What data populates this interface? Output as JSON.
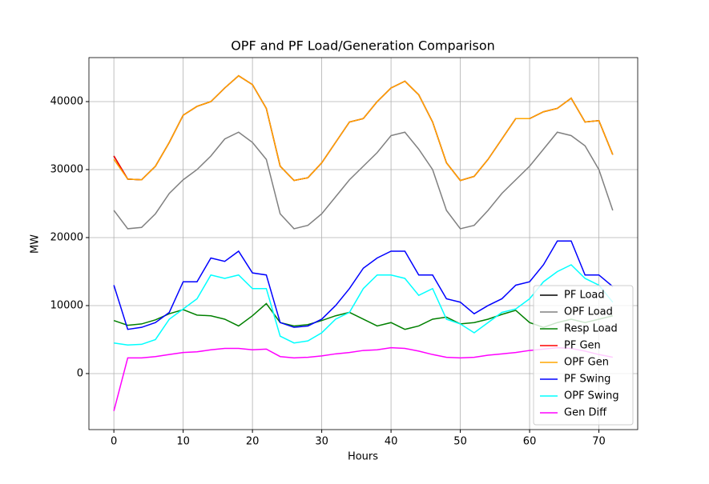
{
  "chart_data": {
    "type": "line",
    "title": "OPF and PF Load/Generation Comparison",
    "x_label": "Hours",
    "y_label": "MW",
    "x": [
      0,
      2,
      4,
      6,
      8,
      10,
      12,
      14,
      16,
      18,
      20,
      22,
      24,
      26,
      28,
      30,
      32,
      34,
      36,
      38,
      40,
      42,
      44,
      46,
      48,
      50,
      52,
      54,
      56,
      58,
      60,
      62,
      64,
      66,
      68,
      70,
      72
    ],
    "xlim": [
      -3.6,
      75.6
    ],
    "xticks": [
      0,
      10,
      20,
      30,
      40,
      50,
      60,
      70
    ],
    "ylim": [
      -8240,
      46470
    ],
    "yticks": [
      0,
      10000,
      20000,
      30000,
      40000
    ],
    "grid": true,
    "legend": "lower right",
    "series": [
      {
        "name": "PF Load",
        "color": "#000000",
        "values": [
          32000,
          28600,
          28500,
          30500,
          34000,
          38000,
          39300,
          40000,
          42000,
          43800,
          42500,
          39000,
          30500,
          28400,
          28800,
          31000,
          34000,
          37000,
          37500,
          40000,
          42000,
          43000,
          41000,
          37000,
          31000,
          28400,
          29000,
          31500,
          34500,
          37500,
          37500,
          38500,
          39000,
          40500,
          37000,
          37200,
          32200
        ]
      },
      {
        "name": "OPF Load",
        "color": "#808080",
        "values": [
          24000,
          21300,
          21500,
          23500,
          26500,
          28500,
          30000,
          32000,
          34500,
          35500,
          34000,
          31500,
          23500,
          21300,
          21800,
          23500,
          26000,
          28500,
          30500,
          32500,
          35000,
          35500,
          33000,
          30000,
          24000,
          21300,
          21800,
          24000,
          26500,
          28500,
          30500,
          33000,
          35500,
          35000,
          33500,
          30000,
          24000
        ]
      },
      {
        "name": "Resp Load",
        "color": "#008000",
        "values": [
          7800,
          7100,
          7300,
          7900,
          8800,
          9400,
          8600,
          8500,
          8000,
          7000,
          8500,
          10300,
          7500,
          7000,
          7200,
          7800,
          8500,
          9000,
          8000,
          7000,
          7500,
          6500,
          7000,
          8000,
          8300,
          7300,
          7500,
          8000,
          8700,
          9300,
          7500,
          6800,
          7500,
          8000,
          7500,
          8000,
          8500
        ]
      },
      {
        "name": "PF Gen",
        "color": "#ff0000",
        "values": [
          32000,
          28600,
          28500,
          30500,
          34000,
          38000,
          39300,
          40000,
          42000,
          43800,
          42500,
          39000,
          30500,
          28400,
          28800,
          31000,
          34000,
          37000,
          37500,
          40000,
          42000,
          43000,
          41000,
          37000,
          31000,
          28400,
          29000,
          31500,
          34500,
          37500,
          37500,
          38500,
          39000,
          40500,
          37000,
          37200,
          32200
        ]
      },
      {
        "name": "OPF Gen",
        "color": "#ffa500",
        "values": [
          31500,
          28600,
          28500,
          30500,
          34000,
          38000,
          39300,
          40000,
          42000,
          43800,
          42500,
          39000,
          30500,
          28400,
          28800,
          31000,
          34000,
          37000,
          37500,
          40000,
          42000,
          43000,
          41000,
          37000,
          31000,
          28400,
          29000,
          31500,
          34500,
          37500,
          37500,
          38500,
          39000,
          40500,
          37000,
          37200,
          32200
        ]
      },
      {
        "name": "PF Swing",
        "color": "#0000ff",
        "values": [
          13000,
          6500,
          6800,
          7500,
          9000,
          13500,
          13500,
          17000,
          16500,
          18000,
          14800,
          14500,
          7500,
          6800,
          7000,
          8000,
          10000,
          12500,
          15500,
          17000,
          18000,
          18000,
          14500,
          14500,
          11000,
          10500,
          8800,
          10000,
          11000,
          13000,
          13500,
          16000,
          19500,
          19500,
          14500,
          14500,
          12800
        ]
      },
      {
        "name": "OPF Swing",
        "color": "#00ffff",
        "values": [
          4500,
          4200,
          4300,
          5000,
          8000,
          9500,
          11000,
          14500,
          14000,
          14500,
          12500,
          12500,
          5500,
          4500,
          4800,
          6000,
          8000,
          9000,
          12500,
          14500,
          14500,
          14000,
          11500,
          12500,
          8000,
          7300,
          6000,
          7500,
          9000,
          9500,
          11000,
          13500,
          15000,
          16000,
          14000,
          13000,
          10500
        ]
      },
      {
        "name": "Gen Diff",
        "color": "#ff00ff",
        "values": [
          -5500,
          2300,
          2300,
          2500,
          2800,
          3100,
          3200,
          3500,
          3700,
          3700,
          3500,
          3600,
          2500,
          2300,
          2400,
          2600,
          2900,
          3100,
          3400,
          3500,
          3800,
          3700,
          3300,
          2800,
          2400,
          2300,
          2400,
          2700,
          2900,
          3100,
          3400,
          3600,
          3800,
          3700,
          3300,
          2800,
          2400
        ]
      }
    ]
  }
}
